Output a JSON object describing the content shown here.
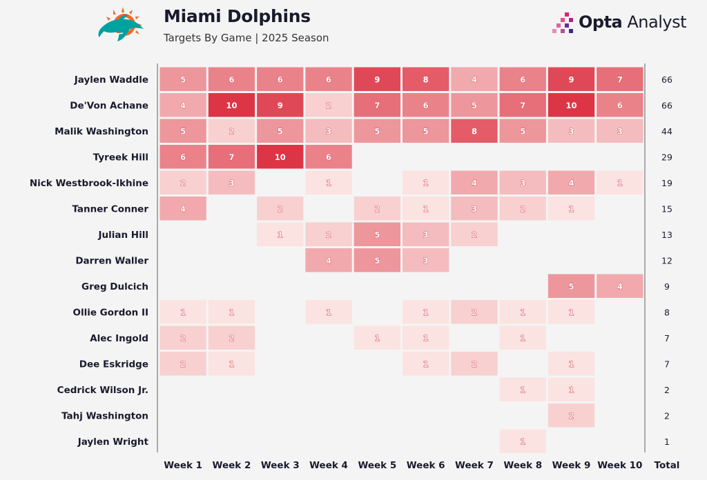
{
  "header": {
    "title": "Miami Dolphins",
    "subtitle": "Targets By Game | 2025 Season",
    "brand_bold": "Opta",
    "brand_light": " Analyst"
  },
  "colors": {
    "max": "#dc3545",
    "min": "#fbe3e1",
    "text_dark": "#1a1a2e",
    "logo_aqua": "#00a1a1",
    "logo_orange": "#f26a24",
    "brand_pink": "#e0246e"
  },
  "chart_data": {
    "type": "heatmap",
    "title": "Miami Dolphins",
    "subtitle": "Targets By Game | 2025 Season",
    "columns": [
      "Week 1",
      "Week 2",
      "Week 3",
      "Week 4",
      "Week 5",
      "Week 6",
      "Week 7",
      "Week 8",
      "Week 9",
      "Week 10"
    ],
    "total_label": "Total",
    "rows": [
      {
        "player": "Jaylen Waddle",
        "values": [
          5,
          6,
          6,
          6,
          9,
          8,
          4,
          6,
          9,
          7
        ],
        "total": 66
      },
      {
        "player": "De'Von Achane",
        "values": [
          4,
          10,
          9,
          2,
          7,
          6,
          5,
          7,
          10,
          6
        ],
        "total": 66
      },
      {
        "player": "Malik Washington",
        "values": [
          5,
          2,
          5,
          3,
          5,
          5,
          8,
          5,
          3,
          3
        ],
        "total": 44
      },
      {
        "player": "Tyreek Hill",
        "values": [
          6,
          7,
          10,
          6,
          null,
          null,
          null,
          null,
          null,
          null
        ],
        "total": 29
      },
      {
        "player": "Nick Westbrook-Ikhine",
        "values": [
          2,
          3,
          null,
          1,
          null,
          1,
          4,
          3,
          4,
          1
        ],
        "total": 19
      },
      {
        "player": "Tanner Conner",
        "values": [
          4,
          null,
          2,
          null,
          2,
          1,
          3,
          2,
          1,
          null
        ],
        "total": 15
      },
      {
        "player": "Julian Hill",
        "values": [
          null,
          null,
          1,
          2,
          5,
          3,
          2,
          null,
          null,
          null
        ],
        "total": 13
      },
      {
        "player": "Darren Waller",
        "values": [
          null,
          null,
          null,
          4,
          5,
          3,
          null,
          null,
          null,
          null
        ],
        "total": 12
      },
      {
        "player": "Greg Dulcich",
        "values": [
          null,
          null,
          null,
          null,
          null,
          null,
          null,
          null,
          5,
          4
        ],
        "total": 9
      },
      {
        "player": "Ollie Gordon II",
        "values": [
          1,
          1,
          null,
          1,
          null,
          1,
          2,
          1,
          1,
          null
        ],
        "total": 8
      },
      {
        "player": "Alec Ingold",
        "values": [
          2,
          2,
          null,
          null,
          1,
          1,
          null,
          1,
          null,
          null
        ],
        "total": 7
      },
      {
        "player": "Dee Eskridge",
        "values": [
          2,
          1,
          null,
          null,
          null,
          1,
          2,
          null,
          1,
          null
        ],
        "total": 7
      },
      {
        "player": "Cedrick Wilson Jr.",
        "values": [
          null,
          null,
          null,
          null,
          null,
          null,
          null,
          1,
          1,
          null
        ],
        "total": 2
      },
      {
        "player": "Tahj Washington",
        "values": [
          null,
          null,
          null,
          null,
          null,
          null,
          null,
          null,
          2,
          null
        ],
        "total": 2
      },
      {
        "player": "Jaylen Wright",
        "values": [
          null,
          null,
          null,
          null,
          null,
          null,
          null,
          1,
          null,
          null
        ],
        "total": 1
      }
    ],
    "value_range": [
      1,
      10
    ]
  }
}
